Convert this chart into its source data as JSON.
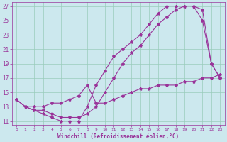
{
  "xlabel": "Windchill (Refroidissement éolien,°C)",
  "bg_color": "#cce8ee",
  "grid_color": "#99ccbb",
  "line_color": "#993399",
  "xlim": [
    -0.5,
    23.5
  ],
  "ylim": [
    10.5,
    27.5
  ],
  "yticks": [
    11,
    13,
    15,
    17,
    19,
    21,
    23,
    25,
    27
  ],
  "xticks": [
    0,
    1,
    2,
    3,
    4,
    5,
    6,
    7,
    8,
    9,
    10,
    11,
    12,
    13,
    14,
    15,
    16,
    17,
    18,
    19,
    20,
    21,
    22,
    23
  ],
  "line1_x": [
    0,
    1,
    2,
    3,
    4,
    5,
    6,
    7,
    8,
    9,
    10,
    11,
    12,
    13,
    14,
    15,
    16,
    17,
    18,
    19,
    20,
    21,
    22,
    23
  ],
  "line1_y": [
    14,
    13,
    12.5,
    12,
    11.5,
    11,
    11,
    11,
    13,
    16,
    18,
    20,
    21,
    22,
    23,
    24.5,
    26,
    27,
    27,
    27,
    27,
    25,
    19,
    17
  ],
  "line2_x": [
    0,
    1,
    2,
    3,
    4,
    5,
    6,
    7,
    8,
    9,
    10,
    11,
    12,
    13,
    14,
    15,
    16,
    17,
    18,
    19,
    20,
    21,
    22,
    23
  ],
  "line2_y": [
    14,
    13,
    12.5,
    12.5,
    12,
    11.5,
    11.5,
    11.5,
    12,
    13,
    15,
    17,
    19,
    20.5,
    21.5,
    23,
    24.5,
    25.5,
    26.5,
    27,
    27,
    26.5,
    19,
    17
  ],
  "line3_x": [
    0,
    1,
    2,
    3,
    4,
    5,
    6,
    7,
    8,
    9,
    10,
    11,
    12,
    13,
    14,
    15,
    16,
    17,
    18,
    19,
    20,
    21,
    22,
    23
  ],
  "line3_y": [
    14,
    13,
    13,
    13,
    13.5,
    13.5,
    14,
    14.5,
    16,
    13.5,
    13.5,
    14,
    14.5,
    15,
    15.5,
    15.5,
    16,
    16,
    16,
    16.5,
    16.5,
    17,
    17,
    17.5
  ]
}
